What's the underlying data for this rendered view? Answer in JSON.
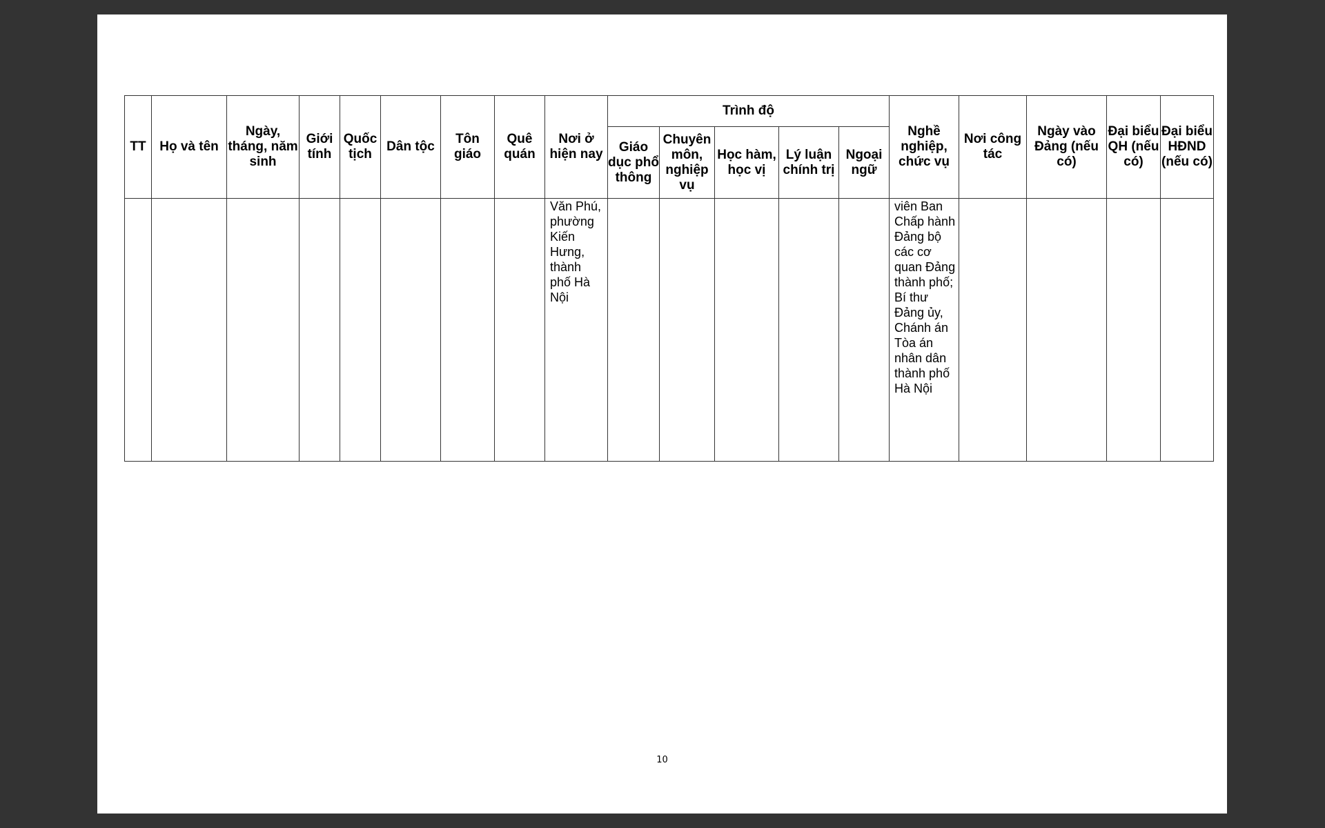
{
  "table": {
    "headers": {
      "tt": "TT",
      "ho_va_ten": "Họ và tên",
      "ngay_sinh": "Ngày, tháng, năm sinh",
      "gioi_tinh": "Giới tính",
      "quoc_tich": "Quốc tịch",
      "dan_toc": "Dân tộc",
      "ton_giao": "Tôn giáo",
      "que_quan": "Quê quán",
      "noi_o": "Nơi ở hiện nay",
      "trinh_do": "Trình độ",
      "giao_duc": "Giáo dục phổ thông",
      "chuyen_mon": "Chuyên môn, nghiệp vụ",
      "hoc_ham": "Học hàm, học vị",
      "ly_luan": "Lý luận chính trị",
      "ngoai_ngu": "Ngoại ngữ",
      "nghe_nghiep": "Nghề nghiệp, chức vụ",
      "noi_cong_tac": "Nơi công tác",
      "ngay_vao_dang": "Ngày vào Đảng (nếu có)",
      "dai_bieu_qh": "Đại biểu QH (nếu có)",
      "dai_bieu_hdnd": "Đại biểu HĐND (nếu có)"
    },
    "row": {
      "noi_o": "Văn Phú, phường Kiến Hưng, thành phố Hà Nội",
      "nghe_nghiep": "viên Ban Chấp hành Đảng bộ các cơ quan Đảng thành phố; Bí thư Đảng ủy, Chánh án Tòa án nhân dân thành phố Hà Nội"
    }
  },
  "page_number": "10"
}
